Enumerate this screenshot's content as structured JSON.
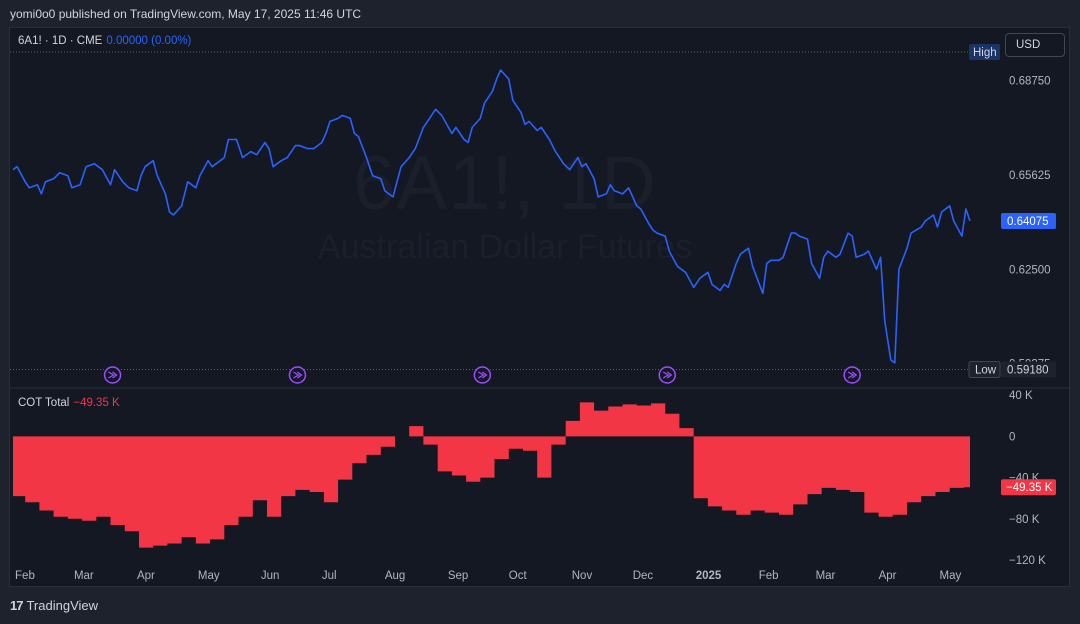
{
  "header": {
    "published": "yomi0o0 published on TradingView.com, May 17, 2025 11:46 UTC"
  },
  "legend_main": {
    "symbol": "6A1! · 1D · CME",
    "value": "0.00000 (0.00%)"
  },
  "legend_cot": {
    "name": "COT Total",
    "value": "−49.35 K"
  },
  "currency_button": "USD",
  "watermark": {
    "symbol": "6A1!, 1D",
    "description": "Australian Dollar Futures"
  },
  "footer": {
    "brand": "TradingView"
  },
  "colors": {
    "price_line": "#2962ff",
    "cot_fill": "#f23645",
    "background": "#141823",
    "event_icon": "#9c4dff"
  },
  "icons": [
    "tradingview-logo-icon",
    "event-arrow-icon"
  ],
  "chart_data": [
    {
      "type": "line",
      "title": "6A1! · 1D · CME",
      "series_name": "Australian Dollar Futures",
      "ylim": [
        0.589,
        0.696
      ],
      "y_ticks": [
        "0.68750",
        "0.65625",
        "0.62500",
        "0.59375"
      ],
      "y_tick_values": [
        0.6875,
        0.65625,
        0.625,
        0.59375
      ],
      "high_label": "High",
      "low_label": "Low",
      "low_value": "0.59180",
      "last_value": "0.64075",
      "x_start": "2024-01-31",
      "x_end": "2025-05-16",
      "x_ticks": [
        "Feb",
        "Mar",
        "Apr",
        "May",
        "Jun",
        "Jul",
        "Aug",
        "Sep",
        "Oct",
        "Nov",
        "Dec",
        "2025",
        "Feb",
        "Mar",
        "Apr",
        "May"
      ],
      "x_tick_dates": [
        "2024-02-01",
        "2024-03-01",
        "2024-04-01",
        "2024-05-01",
        "2024-06-01",
        "2024-07-01",
        "2024-08-01",
        "2024-09-01",
        "2024-10-01",
        "2024-11-01",
        "2024-12-01",
        "2025-01-01",
        "2025-02-01",
        "2025-03-01",
        "2025-04-01",
        "2025-05-01"
      ],
      "event_dates": [
        "2024-03-20",
        "2024-06-19",
        "2024-09-18",
        "2024-12-18",
        "2025-03-19"
      ],
      "points": [
        [
          "2024-01-31",
          0.658
        ],
        [
          "2024-02-02",
          0.659
        ],
        [
          "2024-02-06",
          0.654
        ],
        [
          "2024-02-08",
          0.652
        ],
        [
          "2024-02-12",
          0.653
        ],
        [
          "2024-02-14",
          0.65
        ],
        [
          "2024-02-16",
          0.654
        ],
        [
          "2024-02-20",
          0.655
        ],
        [
          "2024-02-23",
          0.657
        ],
        [
          "2024-02-27",
          0.656
        ],
        [
          "2024-02-29",
          0.652
        ],
        [
          "2024-03-04",
          0.653
        ],
        [
          "2024-03-07",
          0.659
        ],
        [
          "2024-03-11",
          0.66
        ],
        [
          "2024-03-13",
          0.659
        ],
        [
          "2024-03-15",
          0.658
        ],
        [
          "2024-03-19",
          0.653
        ],
        [
          "2024-03-21",
          0.658
        ],
        [
          "2024-03-25",
          0.654
        ],
        [
          "2024-03-28",
          0.652
        ],
        [
          "2024-04-01",
          0.651
        ],
        [
          "2024-04-03",
          0.656
        ],
        [
          "2024-04-05",
          0.659
        ],
        [
          "2024-04-09",
          0.661
        ],
        [
          "2024-04-11",
          0.656
        ],
        [
          "2024-04-15",
          0.65
        ],
        [
          "2024-04-17",
          0.644
        ],
        [
          "2024-04-19",
          0.643
        ],
        [
          "2024-04-23",
          0.646
        ],
        [
          "2024-04-26",
          0.654
        ],
        [
          "2024-04-30",
          0.652
        ],
        [
          "2024-05-02",
          0.656
        ],
        [
          "2024-05-06",
          0.661
        ],
        [
          "2024-05-08",
          0.659
        ],
        [
          "2024-05-10",
          0.66
        ],
        [
          "2024-05-14",
          0.662
        ],
        [
          "2024-05-16",
          0.668
        ],
        [
          "2024-05-20",
          0.668
        ],
        [
          "2024-05-23",
          0.662
        ],
        [
          "2024-05-27",
          0.664
        ],
        [
          "2024-05-30",
          0.663
        ],
        [
          "2024-06-03",
          0.667
        ],
        [
          "2024-06-05",
          0.665
        ],
        [
          "2024-06-07",
          0.659
        ],
        [
          "2024-06-11",
          0.661
        ],
        [
          "2024-06-14",
          0.662
        ],
        [
          "2024-06-18",
          0.666
        ],
        [
          "2024-06-20",
          0.666
        ],
        [
          "2024-06-24",
          0.665
        ],
        [
          "2024-06-27",
          0.665
        ],
        [
          "2024-07-01",
          0.667
        ],
        [
          "2024-07-03",
          0.67
        ],
        [
          "2024-07-05",
          0.674
        ],
        [
          "2024-07-09",
          0.675
        ],
        [
          "2024-07-11",
          0.676
        ],
        [
          "2024-07-15",
          0.675
        ],
        [
          "2024-07-17",
          0.67
        ],
        [
          "2024-07-19",
          0.669
        ],
        [
          "2024-07-23",
          0.662
        ],
        [
          "2024-07-26",
          0.656
        ],
        [
          "2024-07-30",
          0.655
        ],
        [
          "2024-08-01",
          0.651
        ],
        [
          "2024-08-05",
          0.649
        ],
        [
          "2024-08-07",
          0.654
        ],
        [
          "2024-08-09",
          0.659
        ],
        [
          "2024-08-13",
          0.662
        ],
        [
          "2024-08-16",
          0.665
        ],
        [
          "2024-08-20",
          0.672
        ],
        [
          "2024-08-22",
          0.674
        ],
        [
          "2024-08-26",
          0.678
        ],
        [
          "2024-08-29",
          0.676
        ],
        [
          "2024-09-03",
          0.67
        ],
        [
          "2024-09-05",
          0.672
        ],
        [
          "2024-09-09",
          0.668
        ],
        [
          "2024-09-11",
          0.667
        ],
        [
          "2024-09-13",
          0.672
        ],
        [
          "2024-09-17",
          0.675
        ],
        [
          "2024-09-19",
          0.68
        ],
        [
          "2024-09-23",
          0.684
        ],
        [
          "2024-09-25",
          0.688
        ],
        [
          "2024-09-27",
          0.691
        ],
        [
          "2024-10-01",
          0.688
        ],
        [
          "2024-10-03",
          0.681
        ],
        [
          "2024-10-07",
          0.677
        ],
        [
          "2024-10-09",
          0.673
        ],
        [
          "2024-10-11",
          0.674
        ],
        [
          "2024-10-15",
          0.671
        ],
        [
          "2024-10-17",
          0.672
        ],
        [
          "2024-10-21",
          0.668
        ],
        [
          "2024-10-24",
          0.664
        ],
        [
          "2024-10-28",
          0.66
        ],
        [
          "2024-10-31",
          0.658
        ],
        [
          "2024-11-04",
          0.662
        ],
        [
          "2024-11-06",
          0.659
        ],
        [
          "2024-11-08",
          0.66
        ],
        [
          "2024-11-12",
          0.655
        ],
        [
          "2024-11-14",
          0.649
        ],
        [
          "2024-11-18",
          0.65
        ],
        [
          "2024-11-20",
          0.653
        ],
        [
          "2024-11-22",
          0.651
        ],
        [
          "2024-11-26",
          0.65
        ],
        [
          "2024-11-29",
          0.652
        ],
        [
          "2024-12-03",
          0.646
        ],
        [
          "2024-12-05",
          0.645
        ],
        [
          "2024-12-09",
          0.64
        ],
        [
          "2024-12-11",
          0.638
        ],
        [
          "2024-12-13",
          0.637
        ],
        [
          "2024-12-17",
          0.636
        ],
        [
          "2024-12-19",
          0.631
        ],
        [
          "2024-12-23",
          0.626
        ],
        [
          "2024-12-27",
          0.624
        ],
        [
          "2024-12-31",
          0.619
        ],
        [
          "2025-01-03",
          0.622
        ],
        [
          "2025-01-07",
          0.624
        ],
        [
          "2025-01-09",
          0.62
        ],
        [
          "2025-01-13",
          0.618
        ],
        [
          "2025-01-15",
          0.62
        ],
        [
          "2025-01-17",
          0.619
        ],
        [
          "2025-01-21",
          0.627
        ],
        [
          "2025-01-23",
          0.63
        ],
        [
          "2025-01-27",
          0.632
        ],
        [
          "2025-01-29",
          0.626
        ],
        [
          "2025-02-03",
          0.617
        ],
        [
          "2025-02-05",
          0.627
        ],
        [
          "2025-02-07",
          0.628
        ],
        [
          "2025-02-11",
          0.628
        ],
        [
          "2025-02-13",
          0.629
        ],
        [
          "2025-02-17",
          0.637
        ],
        [
          "2025-02-19",
          0.637
        ],
        [
          "2025-02-21",
          0.636
        ],
        [
          "2025-02-25",
          0.635
        ],
        [
          "2025-02-27",
          0.627
        ],
        [
          "2025-03-03",
          0.622
        ],
        [
          "2025-03-05",
          0.629
        ],
        [
          "2025-03-07",
          0.631
        ],
        [
          "2025-03-11",
          0.629
        ],
        [
          "2025-03-13",
          0.63
        ],
        [
          "2025-03-17",
          0.637
        ],
        [
          "2025-03-19",
          0.636
        ],
        [
          "2025-03-21",
          0.629
        ],
        [
          "2025-03-25",
          0.63
        ],
        [
          "2025-03-27",
          0.631
        ],
        [
          "2025-03-31",
          0.625
        ],
        [
          "2025-04-02",
          0.629
        ],
        [
          "2025-04-04",
          0.608
        ],
        [
          "2025-04-07",
          0.595
        ],
        [
          "2025-04-09",
          0.594
        ],
        [
          "2025-04-11",
          0.625
        ],
        [
          "2025-04-15",
          0.632
        ],
        [
          "2025-04-17",
          0.637
        ],
        [
          "2025-04-22",
          0.639
        ],
        [
          "2025-04-24",
          0.641
        ],
        [
          "2025-04-28",
          0.643
        ],
        [
          "2025-04-30",
          0.639
        ],
        [
          "2025-05-02",
          0.644
        ],
        [
          "2025-05-06",
          0.646
        ],
        [
          "2025-05-08",
          0.641
        ],
        [
          "2025-05-12",
          0.636
        ],
        [
          "2025-05-14",
          0.645
        ],
        [
          "2025-05-16",
          0.641
        ]
      ]
    },
    {
      "type": "area",
      "title": "COT Total",
      "series_name": "COT Total",
      "ylim": [
        -120,
        45
      ],
      "y_ticks": [
        "40 K",
        "0",
        "−40 K",
        "−80 K",
        "−120 K"
      ],
      "y_tick_values": [
        40,
        0,
        -40,
        -80,
        -120
      ],
      "unit": "K",
      "last_value": "−49.35 K",
      "x_start": "2024-01-31",
      "x_end": "2025-05-16",
      "steps": [
        [
          "2024-01-31",
          -58
        ],
        [
          "2024-02-06",
          -64
        ],
        [
          "2024-02-13",
          -72
        ],
        [
          "2024-02-20",
          -78
        ],
        [
          "2024-02-27",
          -80
        ],
        [
          "2024-03-05",
          -82
        ],
        [
          "2024-03-12",
          -78
        ],
        [
          "2024-03-19",
          -86
        ],
        [
          "2024-03-26",
          -92
        ],
        [
          "2024-04-02",
          -108
        ],
        [
          "2024-04-09",
          -106
        ],
        [
          "2024-04-16",
          -104
        ],
        [
          "2024-04-23",
          -98
        ],
        [
          "2024-04-30",
          -104
        ],
        [
          "2024-05-07",
          -100
        ],
        [
          "2024-05-14",
          -86
        ],
        [
          "2024-05-21",
          -78
        ],
        [
          "2024-05-28",
          -62
        ],
        [
          "2024-06-04",
          -78
        ],
        [
          "2024-06-11",
          -58
        ],
        [
          "2024-06-18",
          -52
        ],
        [
          "2024-06-25",
          -54
        ],
        [
          "2024-07-02",
          -64
        ],
        [
          "2024-07-09",
          -42
        ],
        [
          "2024-07-16",
          -26
        ],
        [
          "2024-07-23",
          -18
        ],
        [
          "2024-07-30",
          -10
        ],
        [
          "2024-08-06",
          0
        ],
        [
          "2024-08-13",
          10
        ],
        [
          "2024-08-20",
          -8
        ],
        [
          "2024-08-27",
          -34
        ],
        [
          "2024-09-03",
          -38
        ],
        [
          "2024-09-10",
          -44
        ],
        [
          "2024-09-17",
          -40
        ],
        [
          "2024-09-24",
          -22
        ],
        [
          "2024-10-01",
          -12
        ],
        [
          "2024-10-08",
          -14
        ],
        [
          "2024-10-15",
          -40
        ],
        [
          "2024-10-22",
          -8
        ],
        [
          "2024-10-29",
          15
        ],
        [
          "2024-11-05",
          33
        ],
        [
          "2024-11-12",
          25
        ],
        [
          "2024-11-19",
          29
        ],
        [
          "2024-11-26",
          31
        ],
        [
          "2024-12-03",
          30
        ],
        [
          "2024-12-10",
          32
        ],
        [
          "2024-12-17",
          22
        ],
        [
          "2024-12-24",
          8
        ],
        [
          "2024-12-31",
          -60
        ],
        [
          "2025-01-07",
          -68
        ],
        [
          "2025-01-14",
          -72
        ],
        [
          "2025-01-21",
          -76
        ],
        [
          "2025-01-28",
          -72
        ],
        [
          "2025-02-04",
          -74
        ],
        [
          "2025-02-11",
          -76
        ],
        [
          "2025-02-18",
          -66
        ],
        [
          "2025-02-25",
          -56
        ],
        [
          "2025-03-04",
          -50
        ],
        [
          "2025-03-11",
          -52
        ],
        [
          "2025-03-18",
          -54
        ],
        [
          "2025-03-25",
          -74
        ],
        [
          "2025-04-01",
          -78
        ],
        [
          "2025-04-08",
          -76
        ],
        [
          "2025-04-15",
          -64
        ],
        [
          "2025-04-22",
          -58
        ],
        [
          "2025-04-29",
          -54
        ],
        [
          "2025-05-06",
          -50
        ],
        [
          "2025-05-13",
          -49.35
        ]
      ]
    }
  ]
}
